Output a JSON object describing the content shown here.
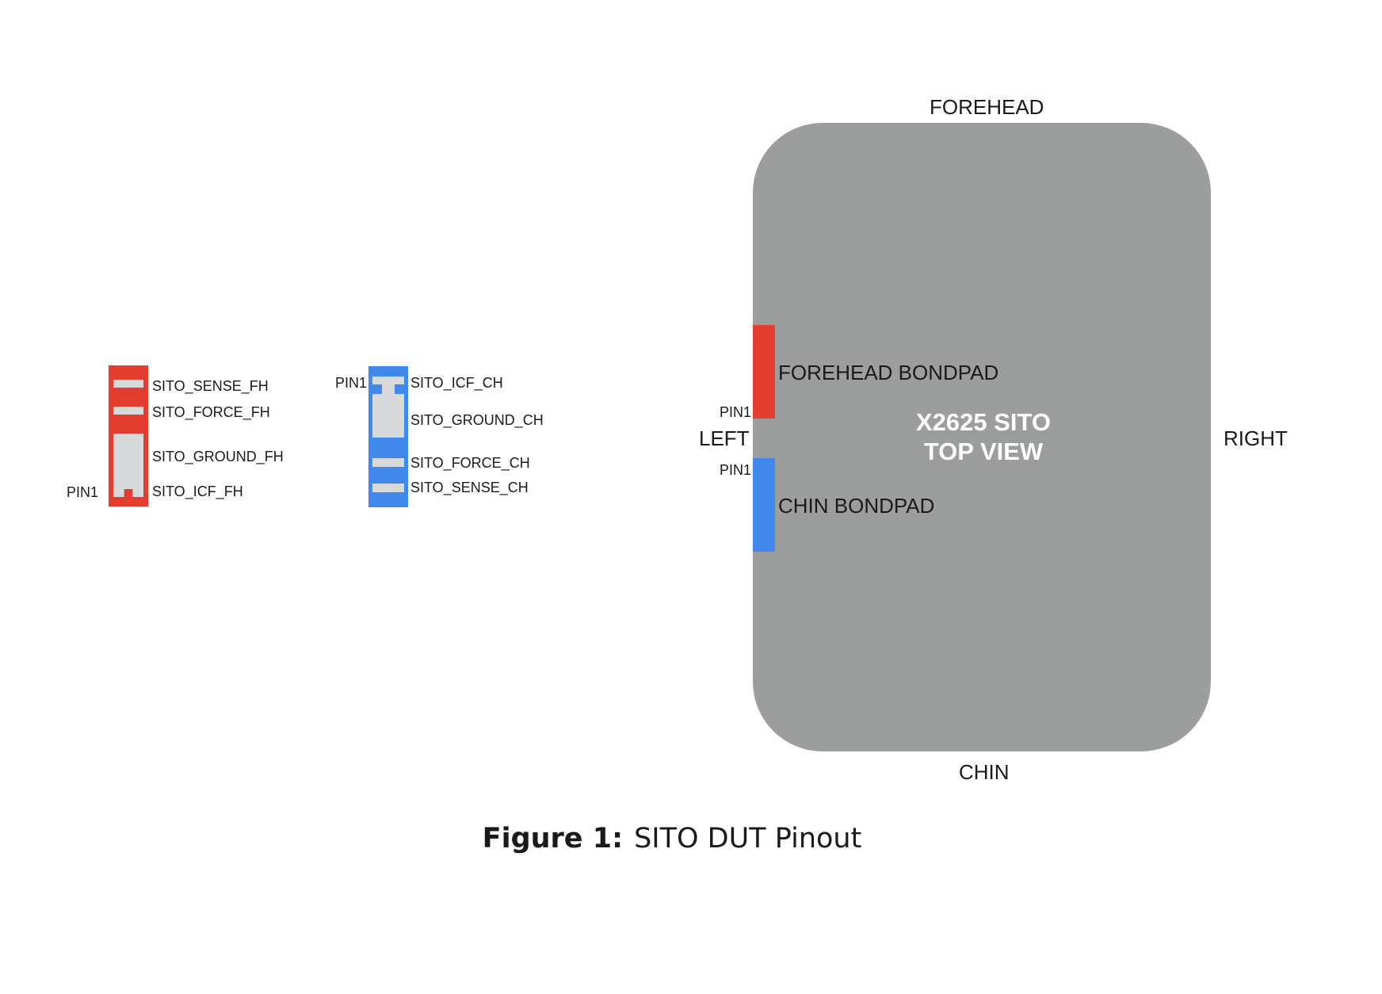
{
  "connector_fh": {
    "pins": [
      "SITO_SENSE_FH",
      "SITO_FORCE_FH",
      "SITO_GROUND_FH",
      "SITO_ICF_FH"
    ],
    "pin1_label": "PIN1",
    "color": "#e33d30"
  },
  "connector_ch": {
    "pins": [
      "SITO_ICF_CH",
      "SITO_GROUND_CH",
      "SITO_FORCE_CH",
      "SITO_SENSE_CH"
    ],
    "pin1_label": "PIN1",
    "color": "#4289ee"
  },
  "chip": {
    "title": "X2625 SITO\nTOP VIEW",
    "top_label": "FOREHEAD",
    "bottom_label": "CHIN",
    "left_label": "LEFT",
    "right_label": "RIGHT",
    "forehead_bondpad": "FOREHEAD BONDPAD",
    "chin_bondpad": "CHIN BONDPAD",
    "pin1_label": "PIN1",
    "body_color": "#9c9e9d"
  },
  "caption": {
    "prefix": "Figure 1:",
    "text": "SITO DUT Pinout"
  }
}
